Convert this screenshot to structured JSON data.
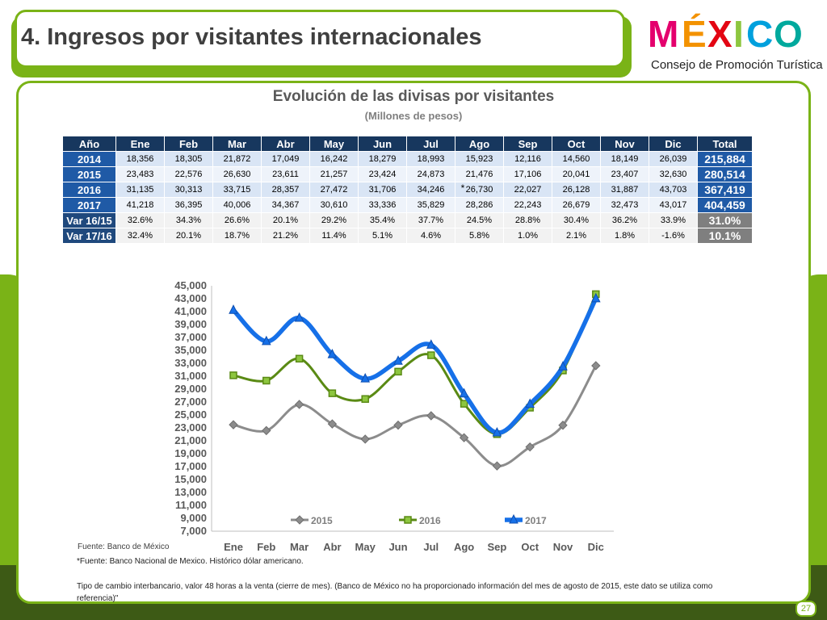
{
  "header": {
    "title": "4. Ingresos por visitantes internacionales",
    "logo_word": "MÉXICO",
    "logo_subtitle": "Consejo de Promoción Turística"
  },
  "table": {
    "columns": [
      "Año",
      "Ene",
      "Feb",
      "Mar",
      "Abr",
      "May",
      "Jun",
      "Jul",
      "Ago",
      "Sep",
      "Oct",
      "Nov",
      "Dic",
      "Total"
    ],
    "rows": [
      {
        "label": "2014",
        "values": [
          "18,356",
          "18,305",
          "21,872",
          "17,049",
          "16,242",
          "18,279",
          "18,993",
          "15,923",
          "12,116",
          "14,560",
          "18,149",
          "26,039"
        ],
        "total": "215,884"
      },
      {
        "label": "2015",
        "values": [
          "23,483",
          "22,576",
          "26,630",
          "23,611",
          "21,257",
          "23,424",
          "24,873",
          "21,476",
          "17,106",
          "20,041",
          "23,407",
          "32,630"
        ],
        "total": "280,514"
      },
      {
        "label": "2016",
        "values": [
          "31,135",
          "30,313",
          "33,715",
          "28,357",
          "27,472",
          "31,706",
          "34,246",
          "26,730",
          "22,027",
          "26,128",
          "31,887",
          "43,703"
        ],
        "total": "367,419"
      },
      {
        "label": "2017",
        "values": [
          "41,218",
          "36,395",
          "40,006",
          "34,367",
          "30,610",
          "33,336",
          "35,829",
          "28,286",
          "22,243",
          "26,679",
          "32,473",
          "43,017"
        ],
        "total": "404,459"
      }
    ],
    "var_rows": [
      {
        "label": "Var 16/15",
        "values": [
          "32.6%",
          "34.3%",
          "26.6%",
          "20.1%",
          "29.2%",
          "35.4%",
          "37.7%",
          "24.5%",
          "28.8%",
          "30.4%",
          "36.2%",
          "33.9%"
        ],
        "total": "31.0%"
      },
      {
        "label": "Var 17/16",
        "values": [
          "32.4%",
          "20.1%",
          "18.7%",
          "21.2%",
          "11.4%",
          "5.1%",
          "4.6%",
          "5.8%",
          "1.0%",
          "2.1%",
          "1.8%",
          "-1.6%"
        ],
        "total": "10.1%"
      }
    ],
    "note_marker": "*"
  },
  "chart_data": {
    "type": "line",
    "title": "Evolución de las divisas por visitantes",
    "subtitle": "(Millones de pesos)",
    "categories": [
      "Ene",
      "Feb",
      "Mar",
      "Abr",
      "May",
      "Jun",
      "Jul",
      "Ago",
      "Sep",
      "Oct",
      "Nov",
      "Dic"
    ],
    "ylim": [
      7000,
      45000
    ],
    "yticks": [
      "7,000",
      "9,000",
      "11,000",
      "13,000",
      "15,000",
      "17,000",
      "19,000",
      "21,000",
      "23,000",
      "25,000",
      "27,000",
      "29,000",
      "31,000",
      "33,000",
      "35,000",
      "37,000",
      "39,000",
      "41,000",
      "43,000",
      "45,000"
    ],
    "grid": false,
    "legend_position": "bottom-inside",
    "series": [
      {
        "name": "2015",
        "color": "#8c8c8c",
        "marker": "diamond",
        "values": [
          23483,
          22576,
          26630,
          23611,
          21257,
          23424,
          24873,
          21476,
          17106,
          20041,
          23407,
          32630
        ]
      },
      {
        "name": "2016",
        "color": "#5a8a14",
        "marker": "square",
        "values": [
          31135,
          30313,
          33715,
          28357,
          27472,
          31706,
          34246,
          26730,
          22027,
          26128,
          31887,
          43703
        ]
      },
      {
        "name": "2017",
        "color": "#1670e8",
        "marker": "triangle",
        "values": [
          41218,
          36395,
          40006,
          34367,
          30610,
          33336,
          35829,
          28286,
          22243,
          26679,
          32473,
          43017
        ]
      }
    ]
  },
  "footer": {
    "source": "Fuente: Banco de México",
    "source_note": "*Fuente: Banco Nacional de Mexico. Histórico dólar americano.",
    "note": "Tipo de cambio interbancario, valor 48 horas a la venta (cierre de mes). (Banco de México no ha proporcionado información del mes de agosto de 2015, este dato se utiliza como referencia)\"",
    "page": "27"
  }
}
